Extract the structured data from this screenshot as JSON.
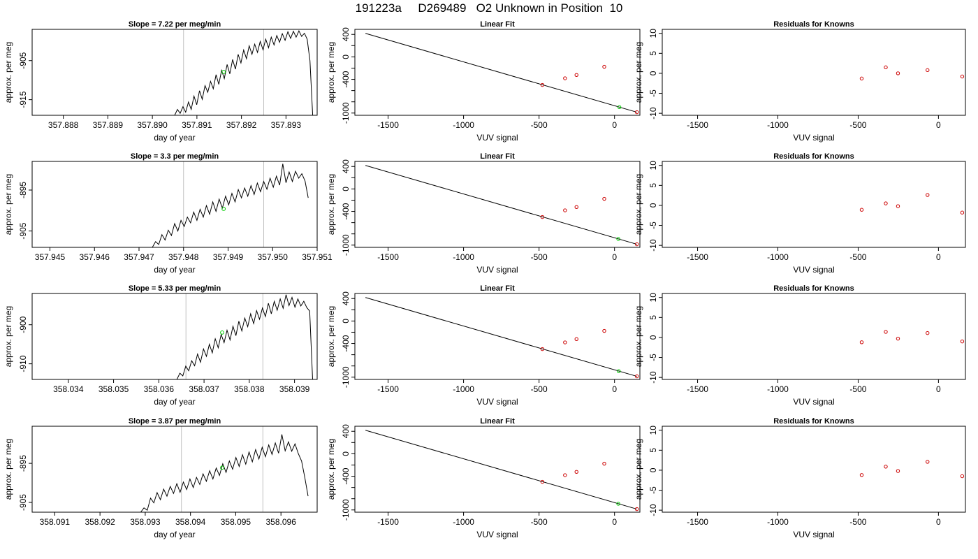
{
  "page_title": "191223a     D269489   O2 Unknown in Position  10",
  "colors": {
    "trace": "#000000",
    "marker_line": "#c0c0c0",
    "fit_line": "#000000",
    "known_points": "#cc0000",
    "unknown_point": "#00cc00",
    "residual_points": "#cc0000"
  },
  "chart_data": [
    {
      "type": "line",
      "title": "Slope =  7.22  per meg/min",
      "xlabel": "day of year",
      "ylabel": "approx. per meg",
      "xlim": [
        357.8873,
        357.8937
      ],
      "ylim": [
        -919,
        -897
      ],
      "xticks": [
        357.888,
        357.889,
        357.89,
        357.891,
        357.892,
        357.893
      ],
      "xtick_labels": [
        "357.888",
        "357.889",
        "357.890",
        "357.891",
        "357.892",
        "357.893"
      ],
      "yticks": [
        -905,
        -915
      ],
      "ytick_labels": [
        "-905",
        "-915"
      ],
      "vlines": [
        357.8907,
        357.8925
      ],
      "highlight_point": {
        "x": 357.8916,
        "y": -907.9
      },
      "series": [
        {
          "x_start": 357.8905,
          "x_end": 357.8936,
          "values": [
            -919,
            -917.5,
            -918.5,
            -916.8,
            -918.2,
            -915.6,
            -917.5,
            -914.1,
            -916.3,
            -912.7,
            -914.9,
            -911.4,
            -913.1,
            -910.3,
            -912.2,
            -908.6,
            -911.1,
            -907.5,
            -909.6,
            -906.0,
            -908.4,
            -904.7,
            -907.2,
            -903.4,
            -905.6,
            -902.3,
            -904.5,
            -901.2,
            -903.4,
            -900.8,
            -902.9,
            -900.1,
            -902.2,
            -899.5,
            -901.7,
            -899.0,
            -901.0,
            -898.6,
            -900.3,
            -898.1,
            -899.8,
            -897.6,
            -899.3,
            -897.5,
            -899.0,
            -897.4,
            -898.8,
            -898.0,
            -899.5,
            -905.0,
            -919.0
          ]
        }
      ]
    },
    {
      "type": "scatter",
      "title": "Linear Fit",
      "xlabel": "VUV signal",
      "ylabel": "approx. per meg",
      "xlim": [
        -1720,
        168
      ],
      "ylim": [
        -1040,
        490
      ],
      "xticks": [
        -1500,
        -1000,
        -500,
        0
      ],
      "xtick_labels": [
        "-1500",
        "-1000",
        "-500",
        "0"
      ],
      "yticks": [
        400,
        0,
        -400,
        -1000
      ],
      "ytick_labels": [
        "400",
        "0",
        "-400",
        "-1000"
      ],
      "yminor_ticks": [
        200,
        -200,
        -600,
        -800
      ],
      "fit_line": {
        "x": [
          -1650,
          148
        ],
        "y": [
          418,
          -985
        ]
      },
      "known_points": {
        "x": [
          -478,
          -328,
          -252,
          -68,
          148
        ],
        "y": [
          -500,
          -381,
          -322,
          -176,
          -985
        ]
      },
      "unknown_point": {
        "x": 32,
        "y": -895
      }
    },
    {
      "type": "scatter",
      "title": "Residuals for Knowns",
      "xlabel": "VUV signal",
      "ylabel": "approx. per meg",
      "xlim": [
        -1720,
        168
      ],
      "ylim": [
        -10.5,
        11
      ],
      "xticks": [
        -1500,
        -1000,
        -500,
        0
      ],
      "xtick_labels": [
        "-1500",
        "-1000",
        "-500",
        "0"
      ],
      "yticks": [
        10,
        5,
        0,
        -5,
        -10
      ],
      "ytick_labels": [
        "10",
        "5",
        "0",
        "-5",
        "-10"
      ],
      "points": {
        "x": [
          -478,
          -328,
          -252,
          -68,
          148
        ],
        "y": [
          -1.3,
          1.5,
          0.0,
          0.8,
          -0.8
        ]
      }
    },
    {
      "type": "line",
      "title": "Slope =  3.3  per meg/min",
      "xlabel": "day of year",
      "ylabel": "approx. per meg",
      "xlim": [
        357.9446,
        357.951
      ],
      "ylim": [
        -909,
        -888
      ],
      "xticks": [
        357.945,
        357.946,
        357.947,
        357.948,
        357.949,
        357.95,
        357.951
      ],
      "xtick_labels": [
        "357.945",
        "357.946",
        "357.947",
        "357.948",
        "357.949",
        "357.950",
        "357.951"
      ],
      "yticks": [
        -895,
        -905
      ],
      "ytick_labels": [
        "-895",
        "-905"
      ],
      "vlines": [
        357.948,
        357.9498
      ],
      "highlight_point": {
        "x": 357.9489,
        "y": -899.6
      },
      "series": [
        {
          "x_start": 357.9473,
          "x_end": 357.9508,
          "values": [
            -909,
            -907.6,
            -908.3,
            -905.9,
            -907.2,
            -904.8,
            -906.1,
            -903.2,
            -905.0,
            -902.4,
            -903.9,
            -901.6,
            -903.0,
            -900.4,
            -902.4,
            -899.7,
            -901.6,
            -898.8,
            -900.9,
            -897.9,
            -900.2,
            -897.2,
            -899.4,
            -896.5,
            -898.6,
            -895.8,
            -897.9,
            -894.9,
            -896.9,
            -894.5,
            -896.5,
            -893.9,
            -896.1,
            -893.3,
            -895.4,
            -892.9,
            -894.8,
            -892.1,
            -894.3,
            -891.6,
            -893.8,
            -888.6,
            -893.2,
            -890.6,
            -892.9,
            -890.4,
            -892.1,
            -891.0,
            -892.8,
            -896.9
          ]
        }
      ]
    },
    {
      "type": "scatter",
      "title": "Linear Fit",
      "xlabel": "VUV signal",
      "ylabel": "approx. per meg",
      "xlim": [
        -1720,
        168
      ],
      "ylim": [
        -1040,
        490
      ],
      "xticks": [
        -1500,
        -1000,
        -500,
        0
      ],
      "xtick_labels": [
        "-1500",
        "-1000",
        "-500",
        "0"
      ],
      "yticks": [
        400,
        0,
        -400,
        -1000
      ],
      "ytick_labels": [
        "400",
        "0",
        "-400",
        "-1000"
      ],
      "yminor_ticks": [
        200,
        -200,
        -600,
        -800
      ],
      "fit_line": {
        "x": [
          -1650,
          148
        ],
        "y": [
          418,
          -985
        ]
      },
      "known_points": {
        "x": [
          -478,
          -328,
          -252,
          -68,
          148
        ],
        "y": [
          -500,
          -381,
          -322,
          -176,
          -985
        ]
      },
      "unknown_point": {
        "x": 25,
        "y": -890
      }
    },
    {
      "type": "scatter",
      "title": "Residuals for Knowns",
      "xlabel": "VUV signal",
      "ylabel": "approx. per meg",
      "xlim": [
        -1720,
        168
      ],
      "ylim": [
        -10.5,
        11
      ],
      "xticks": [
        -1500,
        -1000,
        -500,
        0
      ],
      "xtick_labels": [
        "-1500",
        "-1000",
        "-500",
        "0"
      ],
      "yticks": [
        10,
        5,
        0,
        -5,
        -10
      ],
      "ytick_labels": [
        "10",
        "5",
        "0",
        "-5",
        "-10"
      ],
      "points": {
        "x": [
          -478,
          -328,
          -252,
          -68,
          148
        ],
        "y": [
          -1.1,
          0.5,
          -0.2,
          2.6,
          -1.8
        ]
      }
    },
    {
      "type": "line",
      "title": "Slope =  5.33  per meg/min",
      "xlabel": "day of year",
      "ylabel": "approx. per meg",
      "xlim": [
        358.0332,
        358.0395
      ],
      "ylim": [
        -914,
        -892
      ],
      "xticks": [
        358.034,
        358.035,
        358.036,
        358.037,
        358.038,
        358.039
      ],
      "xtick_labels": [
        "358.034",
        "358.035",
        "358.036",
        "358.037",
        "358.038",
        "358.039"
      ],
      "yticks": [
        -900,
        -910
      ],
      "ytick_labels": [
        "-900",
        "-910"
      ],
      "vlines": [
        358.0366,
        358.0383
      ],
      "highlight_point": {
        "x": 358.0374,
        "y": -902.0
      },
      "series": [
        {
          "x_start": 358.0364,
          "x_end": 358.0394,
          "values": [
            -914,
            -912.4,
            -913.1,
            -910.6,
            -911.8,
            -909.2,
            -910.5,
            -907.5,
            -909.6,
            -906.2,
            -908.1,
            -905.0,
            -907.2,
            -903.6,
            -905.9,
            -902.5,
            -904.6,
            -901.4,
            -903.9,
            -900.4,
            -902.8,
            -899.1,
            -901.6,
            -898.3,
            -900.5,
            -897.2,
            -899.7,
            -896.4,
            -898.6,
            -895.7,
            -897.9,
            -894.5,
            -897.2,
            -894.0,
            -896.3,
            -893.4,
            -895.8,
            -892.3,
            -895.1,
            -893.0,
            -895.5,
            -893.4,
            -895.2,
            -894.0,
            -895.6,
            -896.5,
            -914.0
          ]
        }
      ]
    },
    {
      "type": "scatter",
      "title": "Linear Fit",
      "xlabel": "VUV signal",
      "ylabel": "approx. per meg",
      "xlim": [
        -1720,
        168
      ],
      "ylim": [
        -1040,
        490
      ],
      "xticks": [
        -1500,
        -1000,
        -500,
        0
      ],
      "xtick_labels": [
        "-1500",
        "-1000",
        "-500",
        "0"
      ],
      "yticks": [
        400,
        0,
        -400,
        -1000
      ],
      "ytick_labels": [
        "400",
        "0",
        "-400",
        "-1000"
      ],
      "yminor_ticks": [
        200,
        -200,
        -600,
        -800
      ],
      "fit_line": {
        "x": [
          -1650,
          148
        ],
        "y": [
          418,
          -985
        ]
      },
      "known_points": {
        "x": [
          -478,
          -328,
          -252,
          -68,
          148
        ],
        "y": [
          -500,
          -381,
          -322,
          -176,
          -985
        ]
      },
      "unknown_point": {
        "x": 28,
        "y": -893
      }
    },
    {
      "type": "scatter",
      "title": "Residuals for Knowns",
      "xlabel": "VUV signal",
      "ylabel": "approx. per meg",
      "xlim": [
        -1720,
        168
      ],
      "ylim": [
        -10.5,
        11
      ],
      "xticks": [
        -1500,
        -1000,
        -500,
        0
      ],
      "xtick_labels": [
        "-1500",
        "-1000",
        "-500",
        "0"
      ],
      "yticks": [
        10,
        5,
        0,
        -5,
        -10
      ],
      "ytick_labels": [
        "10",
        "5",
        "0",
        "-5",
        "-10"
      ],
      "points": {
        "x": [
          -478,
          -328,
          -252,
          -68,
          148
        ],
        "y": [
          -1.2,
          1.4,
          -0.3,
          1.1,
          -1.0
        ]
      }
    },
    {
      "type": "line",
      "title": "Slope =  3.87  per meg/min",
      "xlabel": "day of year",
      "ylabel": "approx. per meg",
      "xlim": [
        358.0905,
        358.0968
      ],
      "ylim": [
        -907.5,
        -885.5
      ],
      "xticks": [
        358.091,
        358.092,
        358.093,
        358.094,
        358.095,
        358.096
      ],
      "xtick_labels": [
        "358.091",
        "358.092",
        "358.093",
        "358.094",
        "358.095",
        "358.096"
      ],
      "yticks": [
        -895,
        -905
      ],
      "ytick_labels": [
        "-895",
        "-905"
      ],
      "vlines": [
        358.0938,
        358.0956
      ],
      "highlight_point": {
        "x": 358.0947,
        "y": -896.1
      },
      "series": [
        {
          "x_start": 358.0929,
          "x_end": 358.0966,
          "values": [
            -907.5,
            -906.4,
            -907.0,
            -903.9,
            -905.1,
            -902.5,
            -904.3,
            -901.6,
            -903.4,
            -900.9,
            -902.7,
            -900.2,
            -902.4,
            -899.8,
            -901.7,
            -899.0,
            -901.2,
            -898.6,
            -900.4,
            -897.7,
            -899.6,
            -896.9,
            -899.0,
            -896.2,
            -898.1,
            -895.1,
            -897.3,
            -894.4,
            -896.5,
            -893.5,
            -895.8,
            -892.8,
            -895.2,
            -892.1,
            -894.6,
            -891.5,
            -893.9,
            -890.9,
            -893.3,
            -890.3,
            -892.7,
            -889.8,
            -892.4,
            -887.6,
            -891.8,
            -889.5,
            -891.9,
            -890.0,
            -892.5,
            -894.4,
            -898.6,
            -903.4
          ]
        }
      ]
    },
    {
      "type": "scatter",
      "title": "Linear Fit",
      "xlabel": "VUV signal",
      "ylabel": "approx. per meg",
      "xlim": [
        -1720,
        168
      ],
      "ylim": [
        -1040,
        490
      ],
      "xticks": [
        -1500,
        -1000,
        -500,
        0
      ],
      "xtick_labels": [
        "-1500",
        "-1000",
        "-500",
        "0"
      ],
      "yticks": [
        400,
        0,
        -400,
        -1000
      ],
      "ytick_labels": [
        "400",
        "0",
        "-400",
        "-1000"
      ],
      "yminor_ticks": [
        200,
        -200,
        -600,
        -800
      ],
      "fit_line": {
        "x": [
          -1650,
          148
        ],
        "y": [
          418,
          -985
        ]
      },
      "known_points": {
        "x": [
          -478,
          -328,
          -252,
          -68,
          148
        ],
        "y": [
          -500,
          -381,
          -322,
          -176,
          -985
        ]
      },
      "unknown_point": {
        "x": 25,
        "y": -890
      }
    },
    {
      "type": "scatter",
      "title": "Residuals for Knowns",
      "xlabel": "VUV signal",
      "ylabel": "approx. per meg",
      "xlim": [
        -1720,
        168
      ],
      "ylim": [
        -10.5,
        11
      ],
      "xticks": [
        -1500,
        -1000,
        -500,
        0
      ],
      "xtick_labels": [
        "-1500",
        "-1000",
        "-500",
        "0"
      ],
      "yticks": [
        10,
        5,
        0,
        -5,
        -10
      ],
      "ytick_labels": [
        "10",
        "5",
        "0",
        "-5",
        "-10"
      ],
      "points": {
        "x": [
          -478,
          -328,
          -252,
          -68,
          148
        ],
        "y": [
          -1.2,
          0.9,
          -0.2,
          2.1,
          -1.5
        ]
      }
    }
  ]
}
